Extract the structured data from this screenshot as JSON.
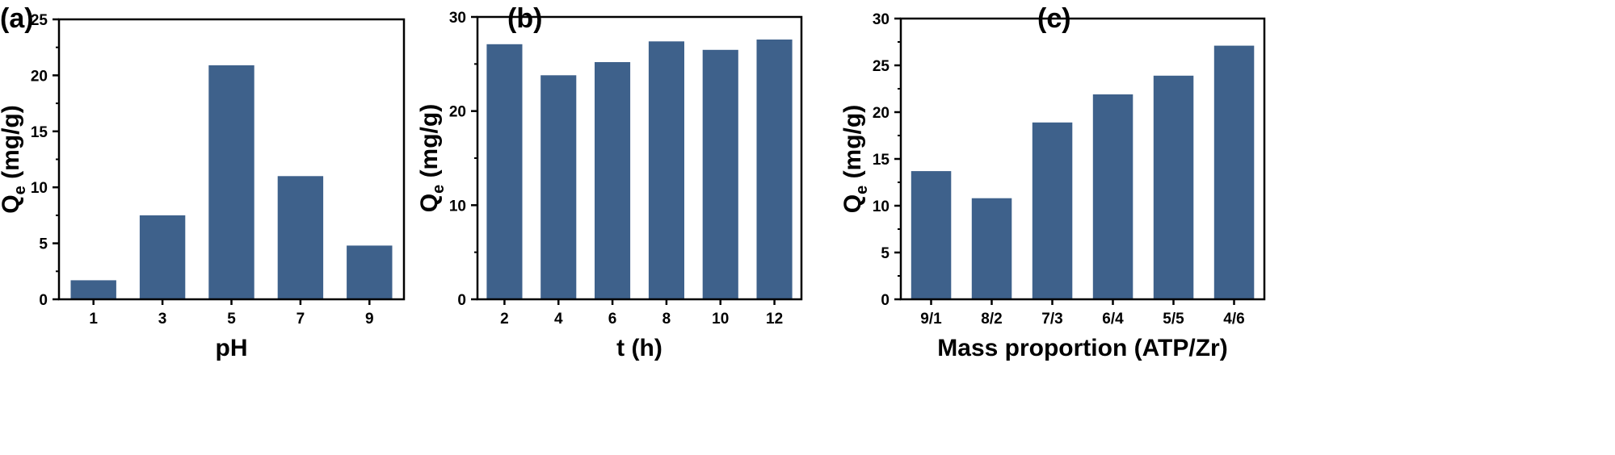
{
  "colors": {
    "bar": "#3e618b",
    "axis": "#000000"
  },
  "chart_data": [
    {
      "type": "bar",
      "panel_label": "(a)",
      "xlabel": "pH",
      "ylabel_main": "Q",
      "ylabel_sub": "e",
      "ylabel_unit": " (mg/g)",
      "categories": [
        "1",
        "3",
        "5",
        "7",
        "9"
      ],
      "values": [
        1.7,
        7.5,
        20.9,
        11.0,
        4.8
      ],
      "ylim": [
        0,
        25
      ],
      "yticks": [
        0,
        5,
        10,
        15,
        20,
        25
      ],
      "grid": false,
      "legend": "none"
    },
    {
      "type": "bar",
      "panel_label": "(b)",
      "xlabel": "t (h)",
      "ylabel_main": "Q",
      "ylabel_sub": "e",
      "ylabel_unit": " (mg/g)",
      "categories": [
        "2",
        "4",
        "6",
        "8",
        "10",
        "12"
      ],
      "values": [
        27.1,
        23.8,
        25.2,
        27.4,
        26.5,
        27.6
      ],
      "ylim": [
        0,
        30
      ],
      "yticks": [
        0,
        10,
        20,
        30
      ],
      "grid": false,
      "legend": "none"
    },
    {
      "type": "bar",
      "panel_label": "(c)",
      "xlabel": "Mass proportion (ATP/Zr)",
      "ylabel_main": "Q",
      "ylabel_sub": "e",
      "ylabel_unit": " (mg/g)",
      "categories": [
        "9/1",
        "8/2",
        "7/3",
        "6/4",
        "5/5",
        "4/6"
      ],
      "values": [
        13.7,
        10.8,
        18.9,
        21.9,
        23.9,
        27.1
      ],
      "ylim": [
        0,
        30
      ],
      "yticks": [
        0,
        5,
        10,
        15,
        20,
        25,
        30
      ],
      "grid": false,
      "legend": "none"
    }
  ]
}
